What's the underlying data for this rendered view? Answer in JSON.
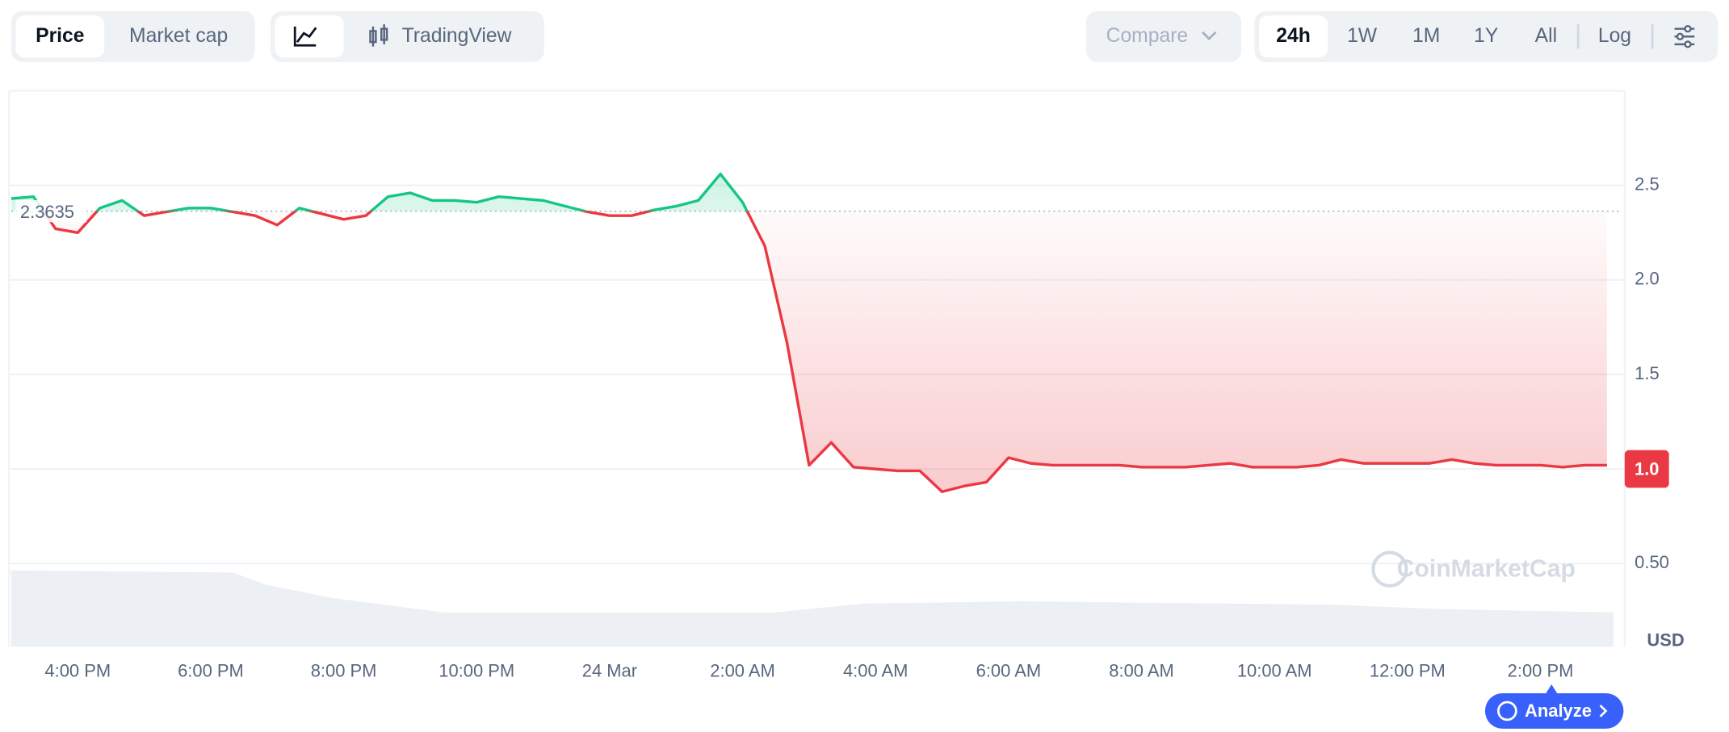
{
  "toolbar": {
    "price": "Price",
    "market_cap": "Market cap",
    "trading_view": "TradingView",
    "compare": "Compare",
    "ranges": [
      "24h",
      "1W",
      "1M",
      "1Y",
      "All"
    ],
    "log": "Log"
  },
  "analyze": "Analyze",
  "chart_data": {
    "type": "line",
    "x": [
      0,
      20,
      40,
      60,
      80,
      100,
      120,
      140,
      160,
      180,
      200,
      220,
      240,
      260,
      280,
      300,
      320,
      340,
      360,
      380,
      400,
      420,
      440,
      460,
      480,
      500,
      520,
      540,
      560,
      580,
      600,
      620,
      640,
      660,
      680,
      700,
      720,
      740,
      760,
      780,
      800,
      820,
      840,
      860,
      880,
      900,
      920,
      940,
      960,
      980,
      1000,
      1020,
      1040,
      1060,
      1080,
      1100,
      1120,
      1140,
      1160,
      1180,
      1200,
      1220,
      1240,
      1260,
      1280,
      1300,
      1320,
      1340,
      1360,
      1380,
      1400,
      1420,
      1440
    ],
    "values": [
      2.43,
      2.44,
      2.27,
      2.25,
      2.38,
      2.42,
      2.34,
      2.36,
      2.38,
      2.38,
      2.36,
      2.34,
      2.29,
      2.38,
      2.35,
      2.32,
      2.34,
      2.44,
      2.46,
      2.42,
      2.42,
      2.41,
      2.44,
      2.43,
      2.42,
      2.39,
      2.36,
      2.34,
      2.34,
      2.37,
      2.39,
      2.42,
      2.56,
      2.41,
      2.18,
      1.67,
      1.02,
      1.14,
      1.01,
      1.0,
      0.99,
      0.99,
      0.88,
      0.91,
      0.93,
      1.06,
      1.03,
      1.02,
      1.02,
      1.02,
      1.02,
      1.01,
      1.01,
      1.01,
      1.02,
      1.03,
      1.01,
      1.01,
      1.01,
      1.02,
      1.05,
      1.03,
      1.03,
      1.03,
      1.03,
      1.05,
      1.03,
      1.02,
      1.02,
      1.02,
      1.01,
      1.02,
      1.02
    ],
    "up_color": "#16c784",
    "down_color": "#ea3943",
    "reference": 2.3635,
    "current": {
      "value": 1,
      "label": "1.0"
    },
    "xlim": [
      0,
      1452
    ],
    "xticks": [
      {
        "value": 60,
        "label": "4:00 PM"
      },
      {
        "value": 180,
        "label": "6:00 PM"
      },
      {
        "value": 300,
        "label": "8:00 PM"
      },
      {
        "value": 420,
        "label": "10:00 PM"
      },
      {
        "value": 540,
        "label": "24 Mar"
      },
      {
        "value": 660,
        "label": "2:00 AM"
      },
      {
        "value": 780,
        "label": "4:00 AM"
      },
      {
        "value": 900,
        "label": "6:00 AM"
      },
      {
        "value": 1020,
        "label": "8:00 AM"
      },
      {
        "value": 1140,
        "label": "10:00 AM"
      },
      {
        "value": 1260,
        "label": "12:00 PM"
      },
      {
        "value": 1380,
        "label": "2:00 PM"
      }
    ],
    "ylim": [
      0.06,
      3.0
    ],
    "yticks": [
      {
        "value": 0.5,
        "label": "0.50"
      },
      {
        "value": 1,
        "label": "1.0"
      },
      1.5,
      {
        "value": 2,
        "label": "2.0"
      },
      2.5
    ],
    "y_label": "USD",
    "watermark": "CoinMarketCap",
    "grid": true
  }
}
